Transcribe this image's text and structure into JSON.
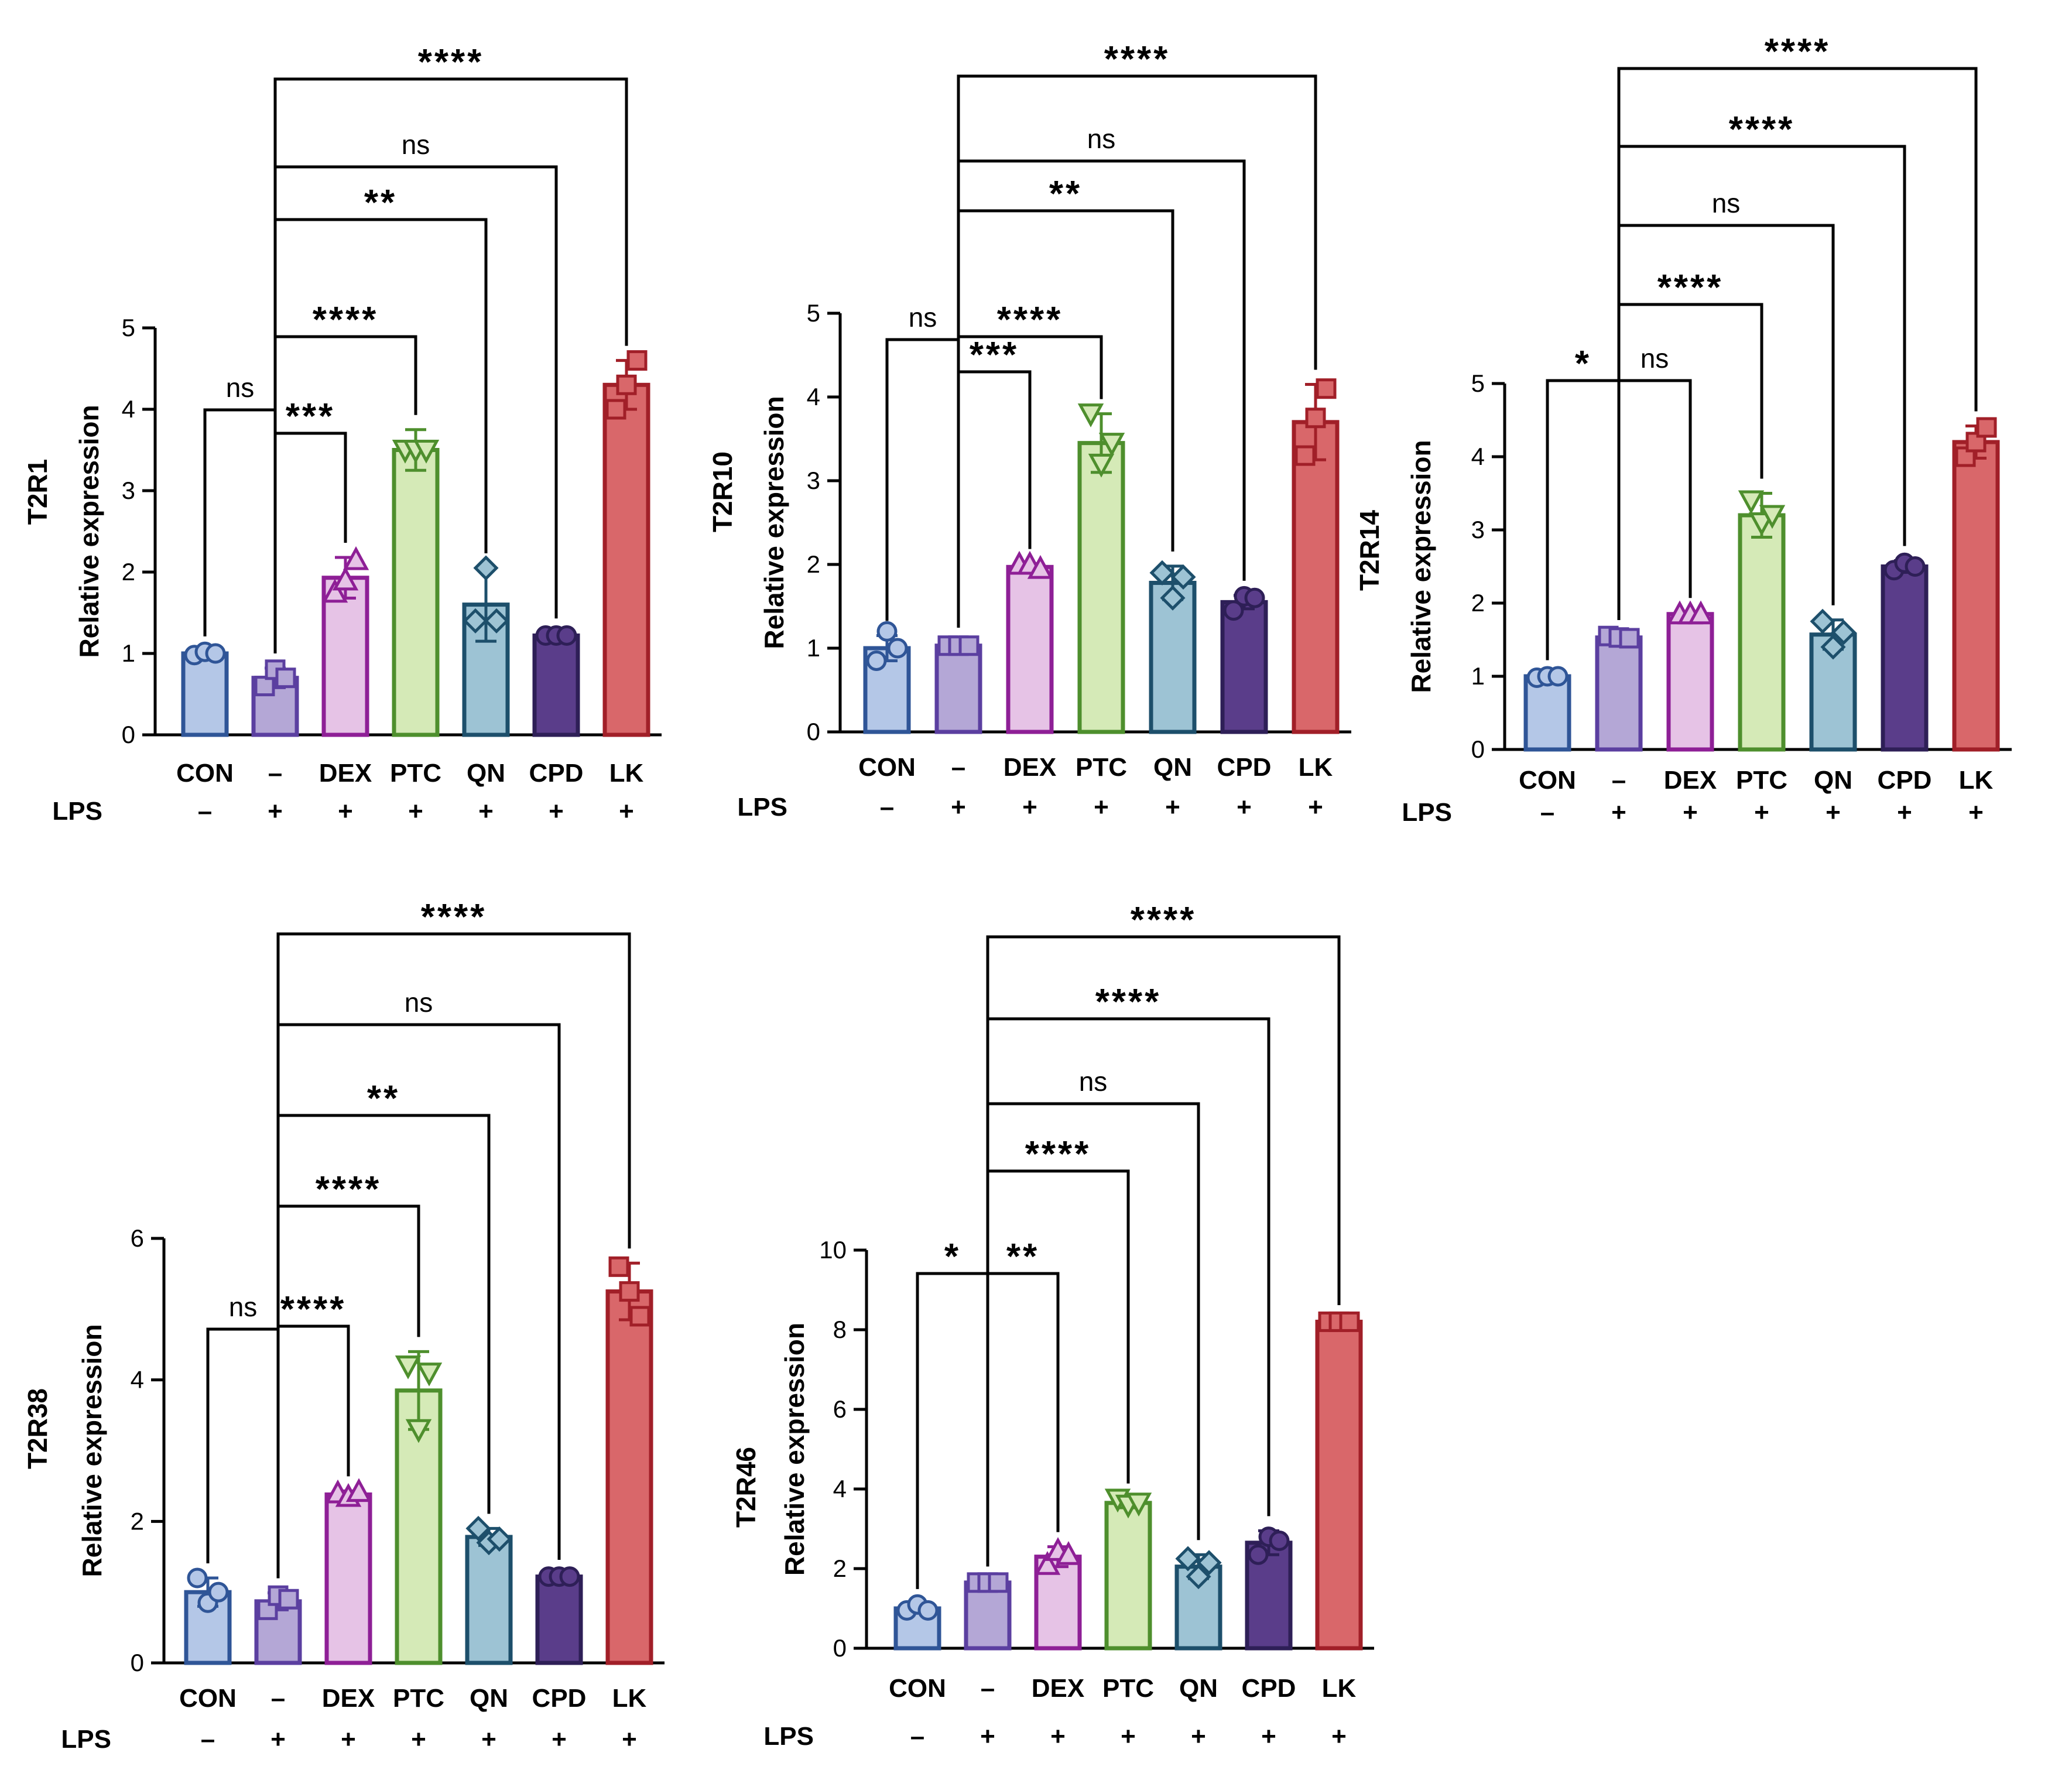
{
  "lps_label": "LPS",
  "colors": {
    "CON": {
      "fill": "#b4c7e7",
      "stroke": "#2f5597"
    },
    "-": {
      "fill": "#b4a7d6",
      "stroke": "#5b3fa0"
    },
    "DEX": {
      "fill": "#e6c3e6",
      "stroke": "#8e1f96"
    },
    "PTC": {
      "fill": "#d5eab7",
      "stroke": "#4e8f2d"
    },
    "QN": {
      "fill": "#9dc3d4",
      "stroke": "#1d4f6b"
    },
    "CPD": {
      "fill": "#5a3d8a",
      "stroke": "#2e1f57"
    },
    "LK": {
      "fill": "#d9676a",
      "stroke": "#a11f28"
    }
  },
  "chart_data": [
    {
      "type": "bar",
      "title": "T2R1",
      "ylabel": "Relative expression",
      "categories": [
        "CON",
        "–",
        "DEX",
        "PTC",
        "QN",
        "CPD",
        "LK"
      ],
      "color_keys": [
        "CON",
        "-",
        "DEX",
        "PTC",
        "QN",
        "CPD",
        "LK"
      ],
      "lps": [
        "–",
        "+",
        "+",
        "+",
        "+",
        "+",
        "+"
      ],
      "values": [
        1.0,
        0.7,
        1.93,
        3.5,
        1.6,
        1.22,
        4.3
      ],
      "errors": [
        0.03,
        0.12,
        0.25,
        0.25,
        0.45,
        0.03,
        0.3
      ],
      "points": [
        [
          0.98,
          1.02,
          1.0
        ],
        [
          0.6,
          0.8,
          0.7
        ],
        [
          1.75,
          1.9,
          2.15
        ],
        [
          3.5,
          3.5,
          3.5
        ],
        [
          1.4,
          2.05,
          1.4
        ],
        [
          1.22,
          1.22,
          1.22
        ],
        [
          4.0,
          4.3,
          4.6
        ]
      ],
      "markers": [
        "circle",
        "square",
        "triangle",
        "triangle-down",
        "diamond",
        "circle",
        "square"
      ],
      "ylim": [
        0,
        5
      ],
      "yticks": [
        0,
        1,
        2,
        3,
        4,
        5
      ],
      "comparisons": [
        {
          "from": 0,
          "to": 1,
          "label": "ns"
        },
        {
          "from": 1,
          "to": 2,
          "label": "***"
        },
        {
          "from": 1,
          "to": 3,
          "label": "****"
        },
        {
          "from": 1,
          "to": 4,
          "label": "**"
        },
        {
          "from": 1,
          "to": 5,
          "label": "ns"
        },
        {
          "from": 1,
          "to": 6,
          "label": "****"
        }
      ]
    },
    {
      "type": "bar",
      "title": "T2R10",
      "ylabel": "Relative expression",
      "categories": [
        "CON",
        "–",
        "DEX",
        "PTC",
        "QN",
        "CPD",
        "LK"
      ],
      "color_keys": [
        "CON",
        "-",
        "DEX",
        "PTC",
        "QN",
        "CPD",
        "LK"
      ],
      "lps": [
        "–",
        "+",
        "+",
        "+",
        "+",
        "+",
        "+"
      ],
      "values": [
        1.0,
        1.03,
        1.97,
        3.45,
        1.78,
        1.55,
        3.7
      ],
      "errors": [
        0.15,
        0.04,
        0.04,
        0.35,
        0.2,
        0.08,
        0.45
      ],
      "points": [
        [
          0.85,
          1.2,
          1.0
        ],
        [
          1.03,
          1.03,
          1.03
        ],
        [
          2.0,
          2.0,
          1.95
        ],
        [
          3.8,
          3.2,
          3.45
        ],
        [
          1.9,
          1.6,
          1.85
        ],
        [
          1.45,
          1.62,
          1.6
        ],
        [
          3.3,
          3.75,
          4.1
        ]
      ],
      "markers": [
        "circle",
        "square",
        "triangle",
        "triangle-down",
        "diamond",
        "circle",
        "square"
      ],
      "ylim": [
        0,
        5
      ],
      "yticks": [
        0,
        1,
        2,
        3,
        4,
        5
      ],
      "comparisons": [
        {
          "from": 0,
          "to": 1,
          "label": "ns"
        },
        {
          "from": 1,
          "to": 2,
          "label": "***"
        },
        {
          "from": 1,
          "to": 3,
          "label": "****"
        },
        {
          "from": 1,
          "to": 4,
          "label": "**"
        },
        {
          "from": 1,
          "to": 5,
          "label": "ns"
        },
        {
          "from": 1,
          "to": 6,
          "label": "****"
        }
      ]
    },
    {
      "type": "bar",
      "title": "T2R14",
      "ylabel": "Relative expression",
      "categories": [
        "CON",
        "–",
        "DEX",
        "PTC",
        "QN",
        "CPD",
        "LK"
      ],
      "color_keys": [
        "CON",
        "-",
        "DEX",
        "PTC",
        "QN",
        "CPD",
        "LK"
      ],
      "lps": [
        "–",
        "+",
        "+",
        "+",
        "+",
        "+",
        "+"
      ],
      "values": [
        1.0,
        1.53,
        1.85,
        3.2,
        1.57,
        2.5,
        4.2
      ],
      "errors": [
        0.02,
        0.04,
        0.02,
        0.3,
        0.2,
        0.08,
        0.22
      ],
      "points": [
        [
          0.98,
          1.0,
          1.0
        ],
        [
          1.55,
          1.53,
          1.52
        ],
        [
          1.85,
          1.85,
          1.85
        ],
        [
          3.4,
          3.1,
          3.2
        ],
        [
          1.75,
          1.4,
          1.6
        ],
        [
          2.45,
          2.55,
          2.5
        ],
        [
          4.0,
          4.2,
          4.4
        ]
      ],
      "markers": [
        "circle",
        "square",
        "triangle",
        "triangle-down",
        "diamond",
        "circle",
        "square"
      ],
      "ylim": [
        0,
        5
      ],
      "yticks": [
        0,
        1,
        2,
        3,
        4,
        5
      ],
      "comparisons": [
        {
          "from": 0,
          "to": 1,
          "label": "*"
        },
        {
          "from": 1,
          "to": 2,
          "label": "ns"
        },
        {
          "from": 1,
          "to": 3,
          "label": "****"
        },
        {
          "from": 1,
          "to": 4,
          "label": "ns"
        },
        {
          "from": 1,
          "to": 5,
          "label": "****"
        },
        {
          "from": 1,
          "to": 6,
          "label": "****"
        }
      ]
    },
    {
      "type": "bar",
      "title": "T2R38",
      "ylabel": "Relative expression",
      "categories": [
        "CON",
        "–",
        "DEX",
        "PTC",
        "QN",
        "CPD",
        "LK"
      ],
      "color_keys": [
        "CON",
        "-",
        "DEX",
        "PTC",
        "QN",
        "CPD",
        "LK"
      ],
      "lps": [
        "–",
        "+",
        "+",
        "+",
        "+",
        "+",
        "+"
      ],
      "values": [
        1.0,
        0.87,
        2.38,
        3.85,
        1.78,
        1.22,
        5.25
      ],
      "errors": [
        0.2,
        0.12,
        0.05,
        0.55,
        0.12,
        0.03,
        0.4
      ],
      "points": [
        [
          1.2,
          0.85,
          1.0
        ],
        [
          0.75,
          0.95,
          0.9
        ],
        [
          2.4,
          2.35,
          2.42
        ],
        [
          4.2,
          3.3,
          4.1
        ],
        [
          1.9,
          1.7,
          1.75
        ],
        [
          1.22,
          1.22,
          1.22
        ],
        [
          5.6,
          5.25,
          4.9
        ]
      ],
      "markers": [
        "circle",
        "square",
        "triangle",
        "triangle-down",
        "diamond",
        "circle",
        "square"
      ],
      "ylim": [
        0,
        6
      ],
      "yticks": [
        0,
        2,
        4,
        6
      ],
      "comparisons": [
        {
          "from": 0,
          "to": 1,
          "label": "ns"
        },
        {
          "from": 1,
          "to": 2,
          "label": "****"
        },
        {
          "from": 1,
          "to": 3,
          "label": "****"
        },
        {
          "from": 1,
          "to": 4,
          "label": "**"
        },
        {
          "from": 1,
          "to": 5,
          "label": "ns"
        },
        {
          "from": 1,
          "to": 6,
          "label": "****"
        }
      ]
    },
    {
      "type": "bar",
      "title": "T2R46",
      "ylabel": "Relative expression",
      "categories": [
        "CON",
        "–",
        "DEX",
        "PTC",
        "QN",
        "CPD",
        "LK"
      ],
      "color_keys": [
        "CON",
        "-",
        "DEX",
        "PTC",
        "QN",
        "CPD",
        "LK"
      ],
      "lps": [
        "–",
        "+",
        "+",
        "+",
        "+",
        "+",
        "+"
      ],
      "values": [
        1.0,
        1.65,
        2.3,
        3.65,
        2.05,
        2.65,
        8.2
      ],
      "errors": [
        0.12,
        0.04,
        0.25,
        0.12,
        0.3,
        0.3,
        0.05
      ],
      "points": [
        [
          0.95,
          1.1,
          0.95
        ],
        [
          1.65,
          1.65,
          1.65
        ],
        [
          2.1,
          2.45,
          2.35
        ],
        [
          3.75,
          3.6,
          3.65
        ],
        [
          2.25,
          1.8,
          2.15
        ],
        [
          2.35,
          2.8,
          2.7
        ],
        [
          8.2,
          8.2,
          8.2
        ]
      ],
      "markers": [
        "circle",
        "square",
        "triangle",
        "triangle-down",
        "diamond",
        "circle",
        "square"
      ],
      "ylim": [
        0,
        10
      ],
      "yticks": [
        0,
        2,
        4,
        6,
        8,
        10
      ],
      "comparisons": [
        {
          "from": 0,
          "to": 1,
          "label": "*"
        },
        {
          "from": 1,
          "to": 2,
          "label": "**"
        },
        {
          "from": 1,
          "to": 3,
          "label": "****"
        },
        {
          "from": 1,
          "to": 4,
          "label": "ns"
        },
        {
          "from": 1,
          "to": 5,
          "label": "****"
        },
        {
          "from": 1,
          "to": 6,
          "label": "****"
        }
      ]
    }
  ]
}
